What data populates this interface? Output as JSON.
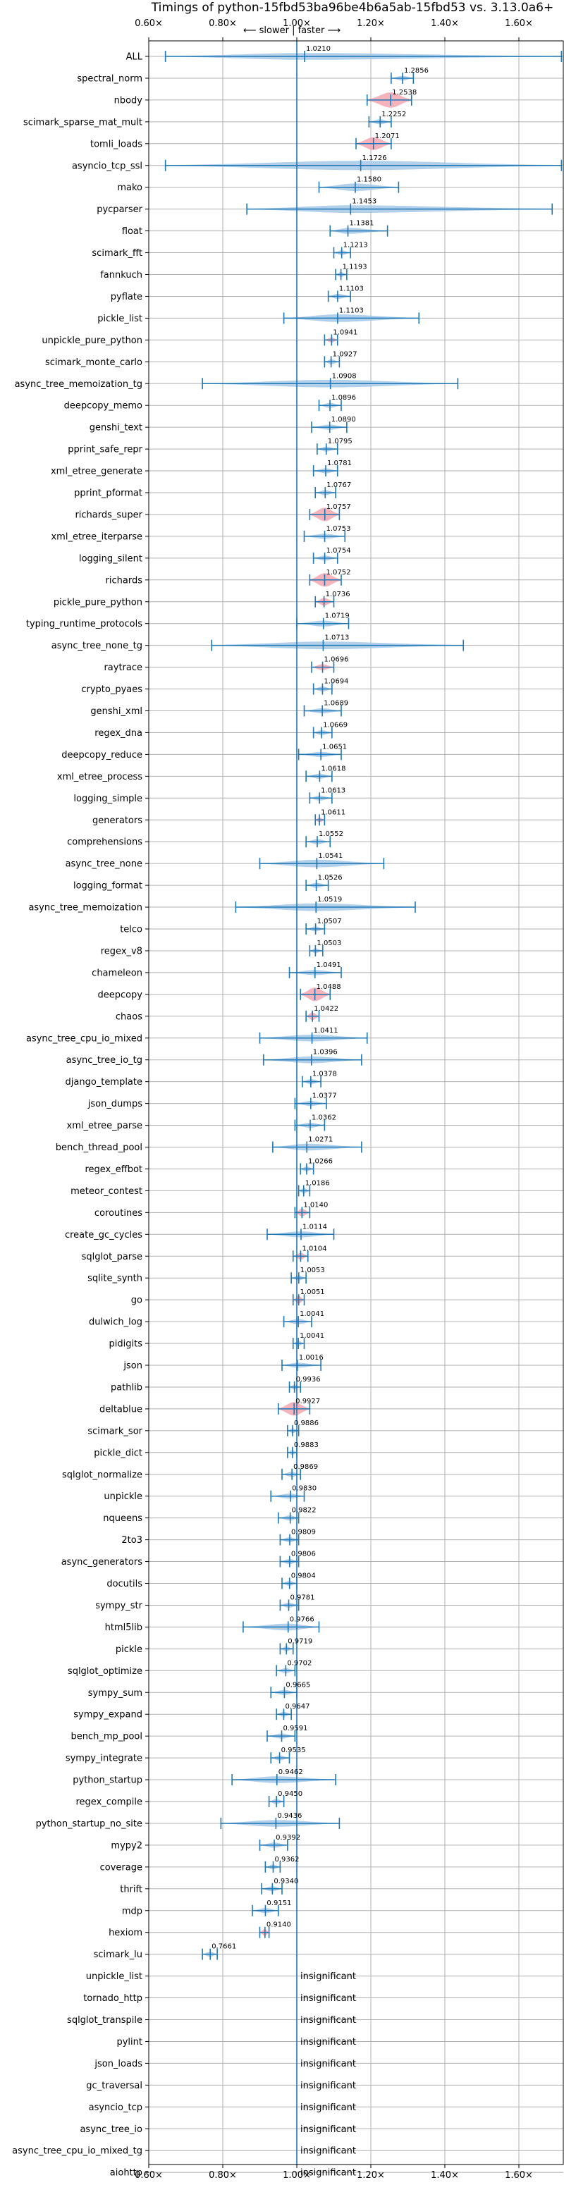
{
  "chart_data": {
    "type": "violin",
    "title": "Timings of python-15fbd53ba96be4b6a5ab-15fbd53 vs. 3.13.0a6+",
    "annotation": "⟵ slower | faster ⟶",
    "xlim": [
      0.6,
      1.72
    ],
    "x_ticks": [
      0.6,
      0.8,
      1.0,
      1.2,
      1.4,
      1.6
    ],
    "x_tick_labels": [
      "0.60×",
      "0.80×",
      "1.00×",
      "1.20×",
      "1.40×",
      "1.60×"
    ],
    "reference_line": 1.0,
    "grid": true,
    "colors": {
      "violin": "#a6c8e8",
      "significant": "#f4a6b0",
      "whisker": "#1f77b4",
      "grid": "#b0b0b0"
    },
    "insignificant_label": "insignificant",
    "benchmarks": [
      {
        "name": "ALL",
        "label": "1.0210",
        "value": 1.021,
        "lo": 0.645,
        "hi": 1.715,
        "w": 0.4,
        "sig": false
      },
      {
        "name": "spectral_norm",
        "label": "1.2856",
        "value": 1.2856,
        "lo": 1.255,
        "hi": 1.315,
        "w": 0.28,
        "sig": false
      },
      {
        "name": "nbody",
        "label": "1.2538",
        "value": 1.2538,
        "lo": 1.19,
        "hi": 1.31,
        "w": 0.9,
        "sig": true
      },
      {
        "name": "scimark_sparse_mat_mult",
        "label": "1.2252",
        "value": 1.2252,
        "lo": 1.195,
        "hi": 1.255,
        "w": 0.3,
        "sig": false
      },
      {
        "name": "tomli_loads",
        "label": "1.2071",
        "value": 1.2071,
        "lo": 1.16,
        "hi": 1.255,
        "w": 0.75,
        "sig": true
      },
      {
        "name": "asyncio_tcp_ssl",
        "label": "1.1726",
        "value": 1.1726,
        "lo": 0.645,
        "hi": 1.715,
        "w": 0.55,
        "sig": false
      },
      {
        "name": "mako",
        "label": "1.1580",
        "value": 1.158,
        "lo": 1.06,
        "hi": 1.275,
        "w": 0.45,
        "sig": false
      },
      {
        "name": "pycparser",
        "label": "1.1453",
        "value": 1.1453,
        "lo": 0.865,
        "hi": 1.69,
        "w": 0.45,
        "sig": false
      },
      {
        "name": "float",
        "label": "1.1381",
        "value": 1.1381,
        "lo": 1.09,
        "hi": 1.245,
        "w": 0.35,
        "sig": false
      },
      {
        "name": "scimark_fft",
        "label": "1.1213",
        "value": 1.1213,
        "lo": 1.1,
        "hi": 1.145,
        "w": 0.28,
        "sig": false
      },
      {
        "name": "fannkuch",
        "label": "1.1193",
        "value": 1.1193,
        "lo": 1.105,
        "hi": 1.135,
        "w": 0.3,
        "sig": false
      },
      {
        "name": "pyflate",
        "label": "1.1103",
        "value": 1.1103,
        "lo": 1.085,
        "hi": 1.145,
        "w": 0.3,
        "sig": false
      },
      {
        "name": "pickle_list",
        "label": "1.1103",
        "value": 1.1103,
        "lo": 0.965,
        "hi": 1.33,
        "w": 0.45,
        "sig": false
      },
      {
        "name": "unpickle_pure_python",
        "label": "1.0941",
        "value": 1.0941,
        "lo": 1.075,
        "hi": 1.11,
        "w": 0.3,
        "sig": true
      },
      {
        "name": "scimark_monte_carlo",
        "label": "1.0927",
        "value": 1.0927,
        "lo": 1.075,
        "hi": 1.115,
        "w": 0.3,
        "sig": false
      },
      {
        "name": "async_tree_memoization_tg",
        "label": "1.0908",
        "value": 1.0908,
        "lo": 0.745,
        "hi": 1.435,
        "w": 0.45,
        "sig": false
      },
      {
        "name": "deepcopy_memo",
        "label": "1.0896",
        "value": 1.0896,
        "lo": 1.06,
        "hi": 1.12,
        "w": 0.3,
        "sig": false
      },
      {
        "name": "genshi_text",
        "label": "1.0890",
        "value": 1.089,
        "lo": 1.04,
        "hi": 1.135,
        "w": 0.3,
        "sig": false
      },
      {
        "name": "pprint_safe_repr",
        "label": "1.0795",
        "value": 1.0795,
        "lo": 1.055,
        "hi": 1.11,
        "w": 0.3,
        "sig": false
      },
      {
        "name": "xml_etree_generate",
        "label": "1.0781",
        "value": 1.0781,
        "lo": 1.045,
        "hi": 1.11,
        "w": 0.3,
        "sig": false
      },
      {
        "name": "pprint_pformat",
        "label": "1.0767",
        "value": 1.0767,
        "lo": 1.05,
        "hi": 1.105,
        "w": 0.3,
        "sig": false
      },
      {
        "name": "richards_super",
        "label": "1.0757",
        "value": 1.0757,
        "lo": 1.035,
        "hi": 1.115,
        "w": 0.8,
        "sig": true
      },
      {
        "name": "xml_etree_iterparse",
        "label": "1.0753",
        "value": 1.0753,
        "lo": 1.02,
        "hi": 1.13,
        "w": 0.3,
        "sig": false
      },
      {
        "name": "logging_silent",
        "label": "1.0754",
        "value": 1.0754,
        "lo": 1.045,
        "hi": 1.11,
        "w": 0.3,
        "sig": false
      },
      {
        "name": "richards",
        "label": "1.0752",
        "value": 1.0752,
        "lo": 1.035,
        "hi": 1.12,
        "w": 0.8,
        "sig": true
      },
      {
        "name": "pickle_pure_python",
        "label": "1.0736",
        "value": 1.0736,
        "lo": 1.05,
        "hi": 1.1,
        "w": 0.45,
        "sig": true
      },
      {
        "name": "typing_runtime_protocols",
        "label": "1.0719",
        "value": 1.0719,
        "lo": 1.0,
        "hi": 1.14,
        "w": 0.35,
        "sig": false
      },
      {
        "name": "async_tree_none_tg",
        "label": "1.0713",
        "value": 1.0713,
        "lo": 0.77,
        "hi": 1.45,
        "w": 0.45,
        "sig": false
      },
      {
        "name": "raytrace",
        "label": "1.0696",
        "value": 1.0696,
        "lo": 1.04,
        "hi": 1.1,
        "w": 0.35,
        "sig": true
      },
      {
        "name": "crypto_pyaes",
        "label": "1.0694",
        "value": 1.0694,
        "lo": 1.045,
        "hi": 1.095,
        "w": 0.3,
        "sig": false
      },
      {
        "name": "genshi_xml",
        "label": "1.0689",
        "value": 1.0689,
        "lo": 1.02,
        "hi": 1.12,
        "w": 0.3,
        "sig": false
      },
      {
        "name": "regex_dna",
        "label": "1.0669",
        "value": 1.0669,
        "lo": 1.045,
        "hi": 1.095,
        "w": 0.3,
        "sig": false
      },
      {
        "name": "deepcopy_reduce",
        "label": "1.0651",
        "value": 1.0651,
        "lo": 1.005,
        "hi": 1.12,
        "w": 0.3,
        "sig": false
      },
      {
        "name": "xml_etree_process",
        "label": "1.0618",
        "value": 1.0618,
        "lo": 1.025,
        "hi": 1.095,
        "w": 0.3,
        "sig": false
      },
      {
        "name": "logging_simple",
        "label": "1.0613",
        "value": 1.0613,
        "lo": 1.035,
        "hi": 1.095,
        "w": 0.3,
        "sig": false
      },
      {
        "name": "generators",
        "label": "1.0611",
        "value": 1.0611,
        "lo": 1.05,
        "hi": 1.075,
        "w": 0.3,
        "sig": true
      },
      {
        "name": "comprehensions",
        "label": "1.0552",
        "value": 1.0552,
        "lo": 1.025,
        "hi": 1.09,
        "w": 0.3,
        "sig": false
      },
      {
        "name": "async_tree_none",
        "label": "1.0541",
        "value": 1.0541,
        "lo": 0.9,
        "hi": 1.235,
        "w": 0.45,
        "sig": false
      },
      {
        "name": "logging_format",
        "label": "1.0526",
        "value": 1.0526,
        "lo": 1.025,
        "hi": 1.085,
        "w": 0.3,
        "sig": false
      },
      {
        "name": "async_tree_memoization",
        "label": "1.0519",
        "value": 1.0519,
        "lo": 0.835,
        "hi": 1.32,
        "w": 0.45,
        "sig": false
      },
      {
        "name": "telco",
        "label": "1.0507",
        "value": 1.0507,
        "lo": 1.025,
        "hi": 1.075,
        "w": 0.3,
        "sig": false
      },
      {
        "name": "regex_v8",
        "label": "1.0503",
        "value": 1.0503,
        "lo": 1.035,
        "hi": 1.07,
        "w": 0.3,
        "sig": false
      },
      {
        "name": "chameleon",
        "label": "1.0491",
        "value": 1.0491,
        "lo": 0.98,
        "hi": 1.12,
        "w": 0.3,
        "sig": false
      },
      {
        "name": "deepcopy",
        "label": "1.0488",
        "value": 1.0488,
        "lo": 1.01,
        "hi": 1.09,
        "w": 0.8,
        "sig": true
      },
      {
        "name": "chaos",
        "label": "1.0422",
        "value": 1.0422,
        "lo": 1.025,
        "hi": 1.06,
        "w": 0.45,
        "sig": true
      },
      {
        "name": "async_tree_cpu_io_mixed",
        "label": "1.0411",
        "value": 1.0411,
        "lo": 0.9,
        "hi": 1.19,
        "w": 0.4,
        "sig": false
      },
      {
        "name": "async_tree_io_tg",
        "label": "1.0396",
        "value": 1.0396,
        "lo": 0.91,
        "hi": 1.175,
        "w": 0.4,
        "sig": false
      },
      {
        "name": "django_template",
        "label": "1.0378",
        "value": 1.0378,
        "lo": 1.015,
        "hi": 1.065,
        "w": 0.3,
        "sig": false
      },
      {
        "name": "json_dumps",
        "label": "1.0377",
        "value": 1.0377,
        "lo": 0.995,
        "hi": 1.08,
        "w": 0.3,
        "sig": false
      },
      {
        "name": "xml_etree_parse",
        "label": "1.0362",
        "value": 1.0362,
        "lo": 0.995,
        "hi": 1.075,
        "w": 0.3,
        "sig": false
      },
      {
        "name": "bench_thread_pool",
        "label": "1.0271",
        "value": 1.0271,
        "lo": 0.935,
        "hi": 1.175,
        "w": 0.4,
        "sig": false
      },
      {
        "name": "regex_effbot",
        "label": "1.0266",
        "value": 1.0266,
        "lo": 1.01,
        "hi": 1.045,
        "w": 0.3,
        "sig": false
      },
      {
        "name": "meteor_contest",
        "label": "1.0186",
        "value": 1.0186,
        "lo": 1.005,
        "hi": 1.035,
        "w": 0.3,
        "sig": false
      },
      {
        "name": "coroutines",
        "label": "1.0140",
        "value": 1.014,
        "lo": 0.995,
        "hi": 1.035,
        "w": 0.45,
        "sig": true
      },
      {
        "name": "create_gc_cycles",
        "label": "1.0114",
        "value": 1.0114,
        "lo": 0.92,
        "hi": 1.1,
        "w": 0.35,
        "sig": false
      },
      {
        "name": "sqlglot_parse",
        "label": "1.0104",
        "value": 1.0104,
        "lo": 0.99,
        "hi": 1.03,
        "w": 0.4,
        "sig": true
      },
      {
        "name": "sqlite_synth",
        "label": "1.0053",
        "value": 1.0053,
        "lo": 0.985,
        "hi": 1.025,
        "w": 0.3,
        "sig": false
      },
      {
        "name": "go",
        "label": "1.0051",
        "value": 1.0051,
        "lo": 0.99,
        "hi": 1.02,
        "w": 0.45,
        "sig": true
      },
      {
        "name": "dulwich_log",
        "label": "1.0041",
        "value": 1.0041,
        "lo": 0.965,
        "hi": 1.04,
        "w": 0.3,
        "sig": false
      },
      {
        "name": "pidigits",
        "label": "1.0041",
        "value": 1.0041,
        "lo": 0.99,
        "hi": 1.02,
        "w": 0.3,
        "sig": false
      },
      {
        "name": "json",
        "label": "1.0016",
        "value": 1.0016,
        "lo": 0.96,
        "hi": 1.065,
        "w": 0.3,
        "sig": false
      },
      {
        "name": "pathlib",
        "label": "0.9936",
        "value": 0.9936,
        "lo": 0.98,
        "hi": 1.01,
        "w": 0.3,
        "sig": false
      },
      {
        "name": "deltablue",
        "label": "0.9927",
        "value": 0.9927,
        "lo": 0.95,
        "hi": 1.035,
        "w": 0.8,
        "sig": true
      },
      {
        "name": "scimark_sor",
        "label": "0.9886",
        "value": 0.9886,
        "lo": 0.975,
        "hi": 1.005,
        "w": 0.3,
        "sig": false
      },
      {
        "name": "pickle_dict",
        "label": "0.9883",
        "value": 0.9883,
        "lo": 0.975,
        "hi": 1.0,
        "w": 0.3,
        "sig": false
      },
      {
        "name": "sqlglot_normalize",
        "label": "0.9869",
        "value": 0.9869,
        "lo": 0.96,
        "hi": 1.01,
        "w": 0.3,
        "sig": false
      },
      {
        "name": "unpickle",
        "label": "0.9830",
        "value": 0.983,
        "lo": 0.93,
        "hi": 1.02,
        "w": 0.3,
        "sig": false
      },
      {
        "name": "nqueens",
        "label": "0.9822",
        "value": 0.9822,
        "lo": 0.95,
        "hi": 1.005,
        "w": 0.3,
        "sig": false
      },
      {
        "name": "2to3",
        "label": "0.9809",
        "value": 0.9809,
        "lo": 0.955,
        "hi": 1.005,
        "w": 0.3,
        "sig": false
      },
      {
        "name": "async_generators",
        "label": "0.9806",
        "value": 0.9806,
        "lo": 0.955,
        "hi": 1.005,
        "w": 0.3,
        "sig": false
      },
      {
        "name": "docutils",
        "label": "0.9804",
        "value": 0.9804,
        "lo": 0.96,
        "hi": 1.0,
        "w": 0.3,
        "sig": false
      },
      {
        "name": "sympy_str",
        "label": "0.9781",
        "value": 0.9781,
        "lo": 0.955,
        "hi": 1.005,
        "w": 0.3,
        "sig": false
      },
      {
        "name": "html5lib",
        "label": "0.9766",
        "value": 0.9766,
        "lo": 0.855,
        "hi": 1.06,
        "w": 0.4,
        "sig": false
      },
      {
        "name": "pickle",
        "label": "0.9719",
        "value": 0.9719,
        "lo": 0.955,
        "hi": 0.99,
        "w": 0.3,
        "sig": false
      },
      {
        "name": "sqlglot_optimize",
        "label": "0.9702",
        "value": 0.9702,
        "lo": 0.945,
        "hi": 0.995,
        "w": 0.3,
        "sig": false
      },
      {
        "name": "sympy_sum",
        "label": "0.9665",
        "value": 0.9665,
        "lo": 0.93,
        "hi": 1.0,
        "w": 0.3,
        "sig": false
      },
      {
        "name": "sympy_expand",
        "label": "0.9647",
        "value": 0.9647,
        "lo": 0.945,
        "hi": 0.985,
        "w": 0.3,
        "sig": false
      },
      {
        "name": "bench_mp_pool",
        "label": "0.9591",
        "value": 0.9591,
        "lo": 0.92,
        "hi": 0.995,
        "w": 0.3,
        "sig": false
      },
      {
        "name": "sympy_integrate",
        "label": "0.9535",
        "value": 0.9535,
        "lo": 0.93,
        "hi": 0.98,
        "w": 0.3,
        "sig": false
      },
      {
        "name": "python_startup",
        "label": "0.9462",
        "value": 0.9462,
        "lo": 0.825,
        "hi": 1.105,
        "w": 0.4,
        "sig": false
      },
      {
        "name": "regex_compile",
        "label": "0.9450",
        "value": 0.945,
        "lo": 0.925,
        "hi": 0.965,
        "w": 0.3,
        "sig": false
      },
      {
        "name": "python_startup_no_site",
        "label": "0.9436",
        "value": 0.9436,
        "lo": 0.795,
        "hi": 1.115,
        "w": 0.4,
        "sig": false
      },
      {
        "name": "mypy2",
        "label": "0.9392",
        "value": 0.9392,
        "lo": 0.9,
        "hi": 0.975,
        "w": 0.3,
        "sig": false
      },
      {
        "name": "coverage",
        "label": "0.9362",
        "value": 0.9362,
        "lo": 0.915,
        "hi": 0.955,
        "w": 0.3,
        "sig": false
      },
      {
        "name": "thrift",
        "label": "0.9340",
        "value": 0.934,
        "lo": 0.905,
        "hi": 0.96,
        "w": 0.3,
        "sig": false
      },
      {
        "name": "mdp",
        "label": "0.9151",
        "value": 0.9151,
        "lo": 0.88,
        "hi": 0.95,
        "w": 0.3,
        "sig": false
      },
      {
        "name": "hexiom",
        "label": "0.9140",
        "value": 0.914,
        "lo": 0.9,
        "hi": 0.925,
        "w": 0.4,
        "sig": true
      },
      {
        "name": "scimark_lu",
        "label": "0.7661",
        "value": 0.7661,
        "lo": 0.745,
        "hi": 0.785,
        "w": 0.3,
        "sig": false
      },
      {
        "name": "unpickle_list",
        "insignificant": true
      },
      {
        "name": "tornado_http",
        "insignificant": true
      },
      {
        "name": "sqlglot_transpile",
        "insignificant": true
      },
      {
        "name": "pylint",
        "insignificant": true
      },
      {
        "name": "json_loads",
        "insignificant": true
      },
      {
        "name": "gc_traversal",
        "insignificant": true
      },
      {
        "name": "asyncio_tcp",
        "insignificant": true
      },
      {
        "name": "async_tree_io",
        "insignificant": true
      },
      {
        "name": "async_tree_cpu_io_mixed_tg",
        "insignificant": true
      },
      {
        "name": "aiohttp",
        "insignificant": true
      }
    ]
  }
}
